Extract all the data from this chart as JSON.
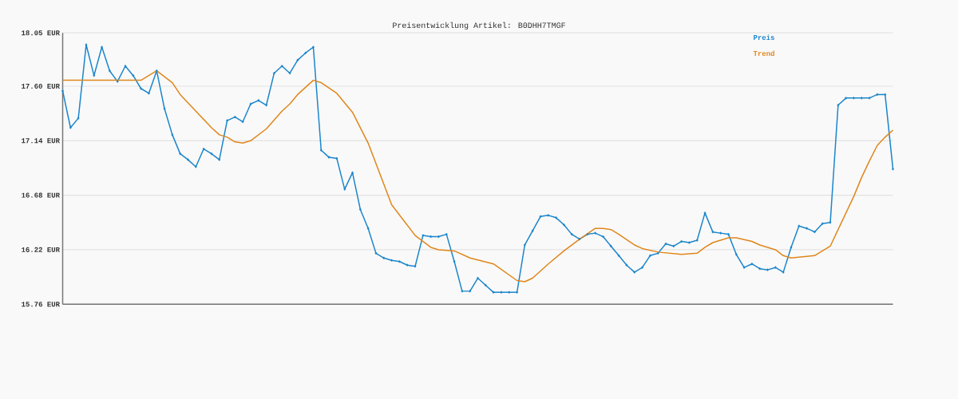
{
  "chart_data": {
    "type": "line",
    "title": "Preisentwicklung Artikel: B0DHH7TMGF",
    "categories": [
      null,
      null,
      null,
      null,
      null,
      null,
      null,
      null,
      null,
      null,
      null,
      null,
      null,
      null,
      null,
      null,
      null,
      null,
      null,
      null,
      null,
      null,
      null,
      null,
      null,
      null,
      null,
      null,
      null,
      null,
      null,
      null,
      null,
      null,
      null,
      null,
      null,
      null,
      null,
      null,
      null,
      null,
      null,
      null,
      null,
      null,
      null,
      null,
      null,
      null,
      null,
      null,
      null,
      null,
      null,
      null,
      null,
      null,
      null,
      null,
      null,
      null,
      null,
      null,
      null,
      null,
      null,
      null,
      null,
      null,
      null,
      null,
      null,
      null,
      null,
      null,
      null,
      null,
      null,
      null,
      null,
      null,
      null,
      null,
      null,
      null,
      null,
      null,
      null,
      null,
      null,
      null,
      null,
      null,
      null,
      null,
      null,
      null,
      null,
      null,
      null,
      null,
      null,
      null,
      null,
      null,
      null
    ],
    "series": [
      {
        "name": "Preis",
        "color": "#1a85cc",
        "marker": "diamond",
        "values": [
          17.56,
          17.25,
          17.33,
          17.95,
          17.69,
          17.93,
          17.73,
          17.64,
          17.77,
          17.69,
          17.58,
          17.54,
          17.73,
          17.41,
          17.19,
          17.03,
          16.98,
          16.92,
          17.07,
          17.03,
          16.98,
          17.31,
          17.34,
          17.3,
          17.45,
          17.48,
          17.44,
          17.71,
          17.77,
          17.71,
          17.82,
          17.88,
          17.93,
          17.06,
          17.0,
          16.99,
          16.73,
          16.87,
          16.56,
          16.4,
          16.19,
          16.15,
          16.13,
          16.12,
          16.09,
          16.08,
          16.34,
          16.33,
          16.33,
          16.35,
          16.12,
          15.87,
          15.87,
          15.98,
          15.92,
          15.86,
          15.86,
          15.86,
          15.86,
          16.26,
          16.38,
          16.5,
          16.51,
          16.49,
          16.43,
          16.35,
          16.31,
          16.35,
          16.36,
          16.33,
          16.25,
          16.17,
          16.09,
          16.03,
          16.07,
          16.17,
          16.19,
          16.27,
          16.25,
          16.29,
          16.28,
          16.3,
          16.53,
          16.37,
          16.36,
          16.35,
          16.18,
          16.07,
          16.1,
          16.06,
          16.05,
          16.07,
          16.03,
          16.24,
          16.42,
          16.4,
          16.37,
          16.44,
          16.45,
          17.44,
          17.5,
          17.5,
          17.5,
          17.5,
          17.53,
          17.53,
          16.9
        ]
      },
      {
        "name": "Trend",
        "color": "#e0861a",
        "marker": "none",
        "values": [
          17.65,
          17.65,
          17.65,
          17.65,
          17.65,
          17.65,
          17.65,
          17.65,
          17.65,
          17.65,
          17.65,
          null,
          17.73,
          null,
          17.63,
          17.53,
          null,
          17.39,
          null,
          17.25,
          17.19,
          17.17,
          17.13,
          17.12,
          17.14,
          null,
          17.24,
          null,
          17.39,
          17.45,
          17.53,
          null,
          17.65,
          17.63,
          null,
          17.54,
          null,
          17.38,
          null,
          17.12,
          null,
          null,
          16.6,
          null,
          null,
          16.34,
          null,
          16.24,
          16.22,
          null,
          16.21,
          null,
          16.15,
          null,
          null,
          16.1,
          null,
          null,
          15.96,
          15.95,
          15.98,
          null,
          16.1,
          null,
          16.21,
          null,
          16.31,
          null,
          16.4,
          16.4,
          16.39,
          16.35,
          null,
          16.26,
          16.23,
          null,
          16.2,
          null,
          null,
          16.18,
          null,
          16.19,
          16.24,
          16.28,
          null,
          16.32,
          16.32,
          null,
          16.29,
          16.26,
          null,
          16.22,
          16.17,
          16.15,
          null,
          null,
          16.17,
          null,
          16.25,
          16.39,
          null,
          16.67,
          16.83,
          16.97,
          17.1,
          17.17,
          17.23
        ]
      }
    ],
    "ylim": [
      15.76,
      18.05
    ],
    "yticks": [
      {
        "value": 15.76,
        "label": "15.76 EUR"
      },
      {
        "value": 16.22,
        "label": "16.22 EUR"
      },
      {
        "value": 16.68,
        "label": "16.68 EUR"
      },
      {
        "value": 17.14,
        "label": "17.14 EUR"
      },
      {
        "value": 17.6,
        "label": "17.60 EUR"
      },
      {
        "value": 18.05,
        "label": "18.05 EUR"
      }
    ],
    "grid": "y",
    "legend": "top right"
  }
}
